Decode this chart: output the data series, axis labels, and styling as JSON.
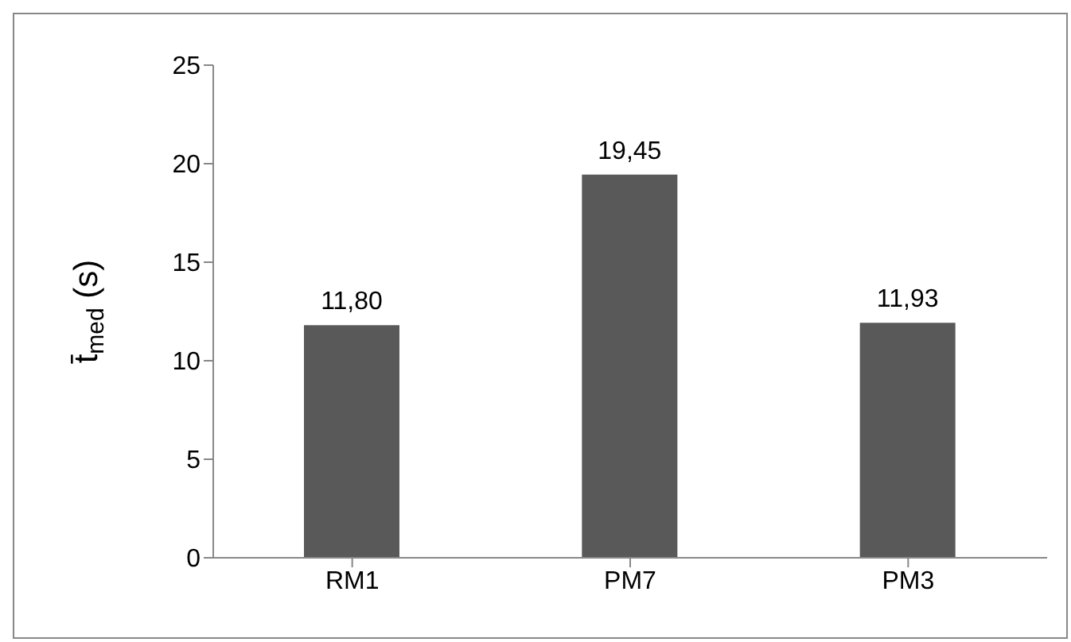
{
  "chart_data": {
    "type": "bar",
    "ylabel": "t̄$_{med}$ (s)",
    "categories": [
      "RM1",
      "PM7",
      "PM3"
    ],
    "values": [
      11.8,
      19.45,
      11.93
    ],
    "value_labels": [
      "11,80",
      "19,45",
      "11,93"
    ],
    "color": "#595959",
    "ylim": [
      0,
      25
    ],
    "yticks": [
      0,
      5,
      10,
      15,
      20,
      25
    ],
    "grid": false,
    "legend": false
  }
}
